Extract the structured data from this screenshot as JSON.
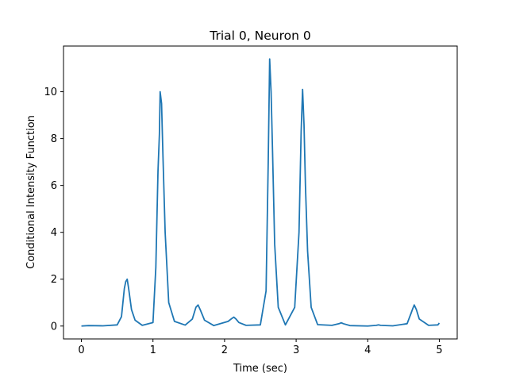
{
  "chart_data": {
    "type": "line",
    "title": "Trial 0, Neuron 0",
    "xlabel": "Time (sec)",
    "ylabel": "Conditional Intensity Function",
    "xlim": [
      -0.25,
      5.25
    ],
    "ylim": [
      -0.55,
      11.95
    ],
    "x_ticks": [
      0,
      1,
      2,
      3,
      4,
      5
    ],
    "x_tick_labels": [
      "0",
      "1",
      "2",
      "3",
      "4",
      "5"
    ],
    "y_ticks": [
      0,
      2,
      4,
      6,
      8,
      10
    ],
    "y_tick_labels": [
      "0",
      "2",
      "4",
      "6",
      "8",
      "10"
    ],
    "grid": false,
    "color": "#1f77b4",
    "series": [
      {
        "x": [
          0,
          0.1,
          0.3,
          0.5,
          0.56,
          0.6,
          0.62,
          0.64,
          0.66,
          0.7,
          0.75,
          0.85,
          1.0,
          1.04,
          1.07,
          1.09,
          1.1,
          1.12,
          1.14,
          1.17,
          1.22,
          1.3,
          1.45,
          1.55,
          1.6,
          1.63,
          1.66,
          1.72,
          1.85,
          2.05,
          2.1,
          2.13,
          2.16,
          2.2,
          2.3,
          2.5,
          2.58,
          2.61,
          2.63,
          2.65,
          2.67,
          2.7,
          2.75,
          2.85,
          2.98,
          3.04,
          3.07,
          3.09,
          3.11,
          3.13,
          3.16,
          3.21,
          3.3,
          3.5,
          3.6,
          3.63,
          3.66,
          3.75,
          4.0,
          4.12,
          4.15,
          4.18,
          4.35,
          4.55,
          4.6,
          4.63,
          4.65,
          4.68,
          4.72,
          4.85,
          4.98,
          5.0
        ],
        "y": [
          0,
          0.02,
          0.01,
          0.05,
          0.4,
          1.6,
          1.9,
          2.0,
          1.6,
          0.7,
          0.25,
          0.03,
          0.15,
          2.5,
          6.6,
          8.2,
          10.0,
          9.5,
          7.2,
          4.0,
          1.0,
          0.2,
          0.04,
          0.3,
          0.8,
          0.9,
          0.7,
          0.25,
          0.02,
          0.2,
          0.32,
          0.38,
          0.3,
          0.15,
          0.03,
          0.05,
          1.5,
          7.0,
          11.4,
          10.0,
          7.5,
          3.5,
          0.8,
          0.05,
          0.8,
          4.0,
          8.3,
          10.1,
          8.6,
          6.0,
          3.2,
          0.8,
          0.06,
          0.03,
          0.1,
          0.14,
          0.1,
          0.02,
          0.0,
          0.03,
          0.05,
          0.03,
          0.01,
          0.1,
          0.5,
          0.75,
          0.9,
          0.7,
          0.3,
          0.03,
          0.05,
          0.13
        ]
      }
    ]
  }
}
